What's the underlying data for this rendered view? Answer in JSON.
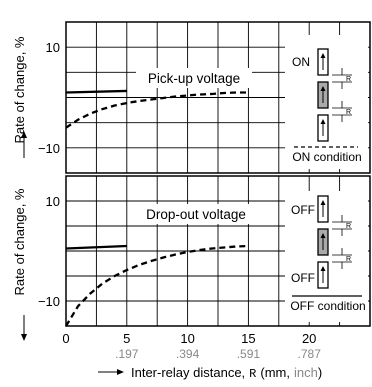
{
  "chart_data": [
    {
      "type": "line",
      "title": "Pick-up voltage",
      "ylabel": "Rate of change, %",
      "xlim": [
        0,
        25
      ],
      "ylim": [
        -15,
        15
      ],
      "yticks": [
        {
          "value": 10,
          "label": "10"
        },
        {
          "value": -10,
          "label": "−10"
        }
      ],
      "grid": true,
      "series": [
        {
          "style": "solid",
          "x": [
            0,
            5
          ],
          "y": [
            1,
            1.3
          ]
        },
        {
          "style": "dashed",
          "x": [
            0,
            1,
            2,
            3,
            4,
            5,
            6,
            7,
            8,
            9,
            10,
            11,
            12,
            13,
            14,
            15
          ],
          "y": [
            -6,
            -4.4,
            -3.2,
            -2.3,
            -1.6,
            -1.1,
            -0.7,
            -0.4,
            -0.1,
            0.2,
            0.4,
            0.6,
            0.7,
            0.9,
            1.0,
            1.0
          ]
        }
      ]
    },
    {
      "type": "line",
      "title": "Drop-out voltage",
      "ylabel": "Rate of change, %",
      "xlabel_prefix": "Inter-relay distance,",
      "xlabel_var": "R",
      "xlabel_unit_mm": "(mm,",
      "xlabel_unit_inch": "inch",
      "xlabel_close": ")",
      "xlim": [
        0,
        25
      ],
      "ylim": [
        -15,
        15
      ],
      "yticks": [
        {
          "value": 10,
          "label": "10"
        },
        {
          "value": -10,
          "label": "−10"
        }
      ],
      "xticks": [
        {
          "value": 0,
          "label": "0",
          "inch": ""
        },
        {
          "value": 5,
          "label": "5",
          "inch": ".197"
        },
        {
          "value": 10,
          "label": "10",
          "inch": ".394"
        },
        {
          "value": 15,
          "label": "15",
          "inch": ".591"
        },
        {
          "value": 20,
          "label": "20",
          "inch": ".787"
        }
      ],
      "grid": true,
      "series": [
        {
          "style": "solid",
          "x": [
            0,
            5
          ],
          "y": [
            0.5,
            1.0
          ]
        },
        {
          "style": "dashed",
          "x": [
            0,
            1,
            2,
            3,
            4,
            5,
            6,
            7,
            8,
            9,
            10,
            11,
            12,
            13,
            14,
            15
          ],
          "y": [
            -15,
            -11,
            -8.5,
            -6.5,
            -5,
            -3.8,
            -2.8,
            -2,
            -1.3,
            -0.7,
            -0.2,
            0.2,
            0.5,
            0.7,
            0.9,
            1.0
          ]
        }
      ]
    }
  ],
  "legend": {
    "top": {
      "state_label": "ON",
      "condition_label": "ON condition",
      "line_style": "dashed",
      "r_label": "R"
    },
    "bottom": {
      "state_label_top": "OFF",
      "state_label_bottom": "OFF",
      "condition_label": "OFF condition",
      "line_style": "solid",
      "r_label": "R"
    }
  }
}
